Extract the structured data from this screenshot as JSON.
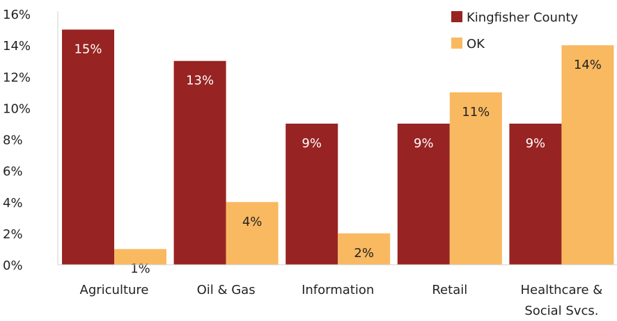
{
  "chart_data": {
    "type": "bar",
    "title": "",
    "xlabel": "",
    "ylabel": "",
    "ylim": [
      0,
      16
    ],
    "y_ticks": [
      "0%",
      "2%",
      "4%",
      "6%",
      "8%",
      "10%",
      "12%",
      "14%",
      "16%"
    ],
    "y_tick_values": [
      0,
      2,
      4,
      6,
      8,
      10,
      12,
      14,
      16
    ],
    "categories": [
      [
        "Agriculture"
      ],
      [
        "Oil & Gas"
      ],
      [
        "Information"
      ],
      [
        "Retail"
      ],
      [
        "Healthcare &",
        "Social Svcs."
      ]
    ],
    "series": [
      {
        "name": "Kingfisher County",
        "color": "#972422",
        "values": [
          15,
          13,
          9,
          9,
          9
        ],
        "labels": [
          "15%",
          "13%",
          "9%",
          "9%",
          "9%"
        ],
        "label_color": "#ffffff"
      },
      {
        "name": "OK",
        "color": "#F9B961",
        "values": [
          1,
          4,
          2,
          11,
          14
        ],
        "labels": [
          "1%",
          "4%",
          "2%",
          "11%",
          "14%"
        ],
        "label_color": "#222222"
      }
    ],
    "legend_position": "top-right",
    "grid": false
  }
}
